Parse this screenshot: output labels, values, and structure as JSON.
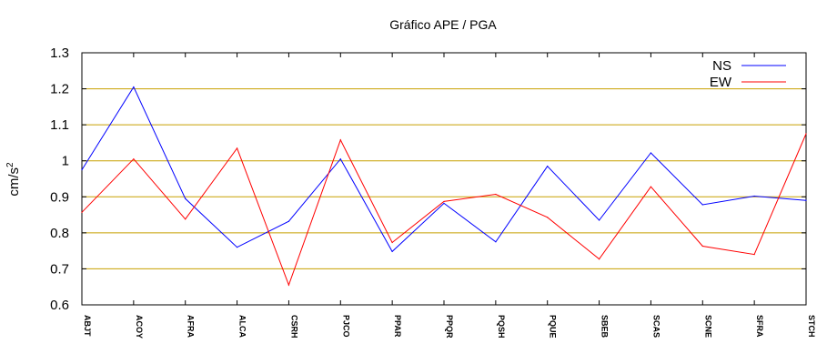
{
  "chart_data": {
    "type": "line",
    "title": "Gráfico  APE / PGA",
    "ylabel": "cm/s",
    "ylabel_sup": "2",
    "xlabel": "",
    "ylim": [
      0.6,
      1.3
    ],
    "yticks": [
      "0.6",
      "0.7",
      "0.8",
      "0.9",
      "1",
      "1.1",
      "1.2",
      "1.3"
    ],
    "grid": "horizontal",
    "grid_color": "#c8a000",
    "legend_position": "top-right",
    "categories": [
      "ABJT",
      "ACOY",
      "AFRA",
      "ALCA",
      "CSRH",
      "PJCO",
      "PPAR",
      "PPQR",
      "PQSH",
      "PQUE",
      "SBEB",
      "SCAS",
      "SCNE",
      "SFRA",
      "STCH"
    ],
    "series": [
      {
        "name": "NS",
        "color": "#0000ff",
        "values": [
          0.975,
          1.205,
          0.895,
          0.76,
          0.832,
          1.005,
          0.748,
          0.882,
          0.775,
          0.985,
          0.835,
          1.022,
          0.878,
          0.902,
          0.89
        ]
      },
      {
        "name": "EW",
        "color": "#ff0000",
        "values": [
          0.857,
          1.005,
          0.838,
          1.035,
          0.655,
          1.058,
          0.773,
          0.887,
          0.907,
          0.843,
          0.727,
          0.928,
          0.763,
          0.74,
          1.075
        ]
      }
    ]
  }
}
